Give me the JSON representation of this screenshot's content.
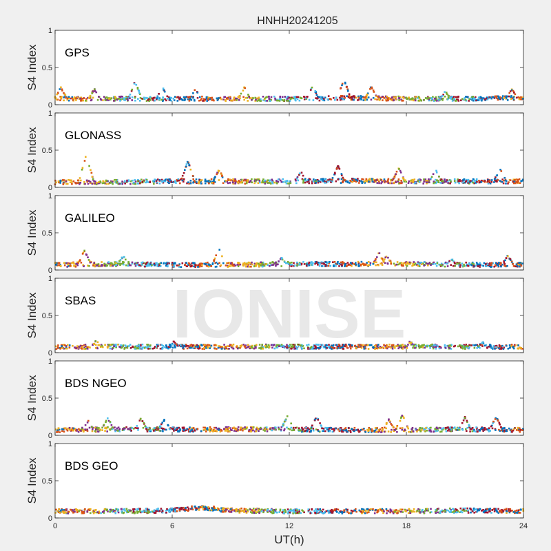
{
  "figure": {
    "title": "HNHH20241205",
    "watermark": "IONISE",
    "xlabel": "UT(h)"
  },
  "chart_data": {
    "type": "scatter",
    "title": "HNHH20241205",
    "xlabel": "UT(h)",
    "ylabel": "S4 Index",
    "xlim": [
      0,
      24
    ],
    "ylim": [
      0,
      1
    ],
    "xticks": [
      0,
      6,
      12,
      18,
      24
    ],
    "yticks": [
      0,
      0.5,
      1
    ],
    "ytick_labels": [
      "0",
      "0.5",
      "1"
    ],
    "grid": false,
    "colors": [
      "#0072BD",
      "#D95319",
      "#EDB120",
      "#7E2F8E",
      "#77AC30",
      "#4DBEEE",
      "#A2142F"
    ],
    "panels": [
      {
        "name": "GPS",
        "baseline": [
          [
            0,
            0.08
          ],
          [
            3,
            0.08
          ],
          [
            6,
            0.08
          ],
          [
            9,
            0.08
          ],
          [
            12,
            0.08
          ],
          [
            15,
            0.09
          ],
          [
            18,
            0.08
          ],
          [
            21,
            0.08
          ],
          [
            24,
            0.09
          ]
        ],
        "peaks": [
          [
            0.3,
            0.22
          ],
          [
            2.0,
            0.2
          ],
          [
            4.1,
            0.3
          ],
          [
            5.5,
            0.22
          ],
          [
            7.2,
            0.2
          ],
          [
            9.7,
            0.22
          ],
          [
            13.2,
            0.24
          ],
          [
            14.8,
            0.33
          ],
          [
            16.2,
            0.24
          ],
          [
            20.0,
            0.17
          ],
          [
            23.4,
            0.2
          ]
        ]
      },
      {
        "name": "GLONASS",
        "baseline": [
          [
            0,
            0.07
          ],
          [
            3,
            0.07
          ],
          [
            6,
            0.08
          ],
          [
            9,
            0.08
          ],
          [
            12,
            0.08
          ],
          [
            15,
            0.09
          ],
          [
            18,
            0.08
          ],
          [
            21,
            0.08
          ],
          [
            24,
            0.08
          ]
        ],
        "peaks": [
          [
            1.6,
            0.43
          ],
          [
            6.8,
            0.34
          ],
          [
            8.4,
            0.22
          ],
          [
            12.6,
            0.2
          ],
          [
            14.5,
            0.28
          ],
          [
            17.6,
            0.25
          ],
          [
            19.5,
            0.22
          ],
          [
            22.8,
            0.24
          ]
        ]
      },
      {
        "name": "GALILEO",
        "baseline": [
          [
            0,
            0.07
          ],
          [
            3,
            0.08
          ],
          [
            6,
            0.07
          ],
          [
            9,
            0.07
          ],
          [
            12,
            0.08
          ],
          [
            15,
            0.08
          ],
          [
            18,
            0.08
          ],
          [
            21,
            0.07
          ],
          [
            24,
            0.07
          ]
        ],
        "peaks": [
          [
            1.5,
            0.25
          ],
          [
            3.5,
            0.18
          ],
          [
            8.4,
            0.27
          ],
          [
            11.6,
            0.15
          ],
          [
            16.6,
            0.22
          ],
          [
            17.0,
            0.18
          ],
          [
            20.3,
            0.14
          ],
          [
            23.2,
            0.18
          ]
        ]
      },
      {
        "name": "SBAS",
        "baseline": [
          [
            0,
            0.08
          ],
          [
            3,
            0.08
          ],
          [
            6,
            0.08
          ],
          [
            9,
            0.08
          ],
          [
            12,
            0.08
          ],
          [
            15,
            0.08
          ],
          [
            18,
            0.08
          ],
          [
            21,
            0.08
          ],
          [
            24,
            0.08
          ]
        ],
        "peaks": [
          [
            2.1,
            0.15
          ],
          [
            6.1,
            0.14
          ],
          [
            18.2,
            0.14
          ],
          [
            21.9,
            0.13
          ]
        ]
      },
      {
        "name": "BDS NGEO",
        "baseline": [
          [
            0,
            0.07
          ],
          [
            3,
            0.08
          ],
          [
            6,
            0.08
          ],
          [
            9,
            0.08
          ],
          [
            12,
            0.08
          ],
          [
            15,
            0.07
          ],
          [
            18,
            0.07
          ],
          [
            21,
            0.08
          ],
          [
            24,
            0.07
          ]
        ],
        "peaks": [
          [
            1.7,
            0.18
          ],
          [
            2.7,
            0.22
          ],
          [
            4.4,
            0.22
          ],
          [
            5.6,
            0.2
          ],
          [
            11.9,
            0.25
          ],
          [
            13.4,
            0.24
          ],
          [
            17.1,
            0.2
          ],
          [
            17.8,
            0.26
          ],
          [
            21.0,
            0.23
          ],
          [
            22.6,
            0.24
          ]
        ]
      },
      {
        "name": "BDS GEO",
        "baseline": [
          [
            0,
            0.09
          ],
          [
            3,
            0.09
          ],
          [
            6,
            0.1
          ],
          [
            7.5,
            0.14
          ],
          [
            9,
            0.1
          ],
          [
            12,
            0.09
          ],
          [
            15,
            0.09
          ],
          [
            18,
            0.09
          ],
          [
            21,
            0.1
          ],
          [
            24,
            0.09
          ]
        ],
        "peaks": []
      }
    ]
  }
}
